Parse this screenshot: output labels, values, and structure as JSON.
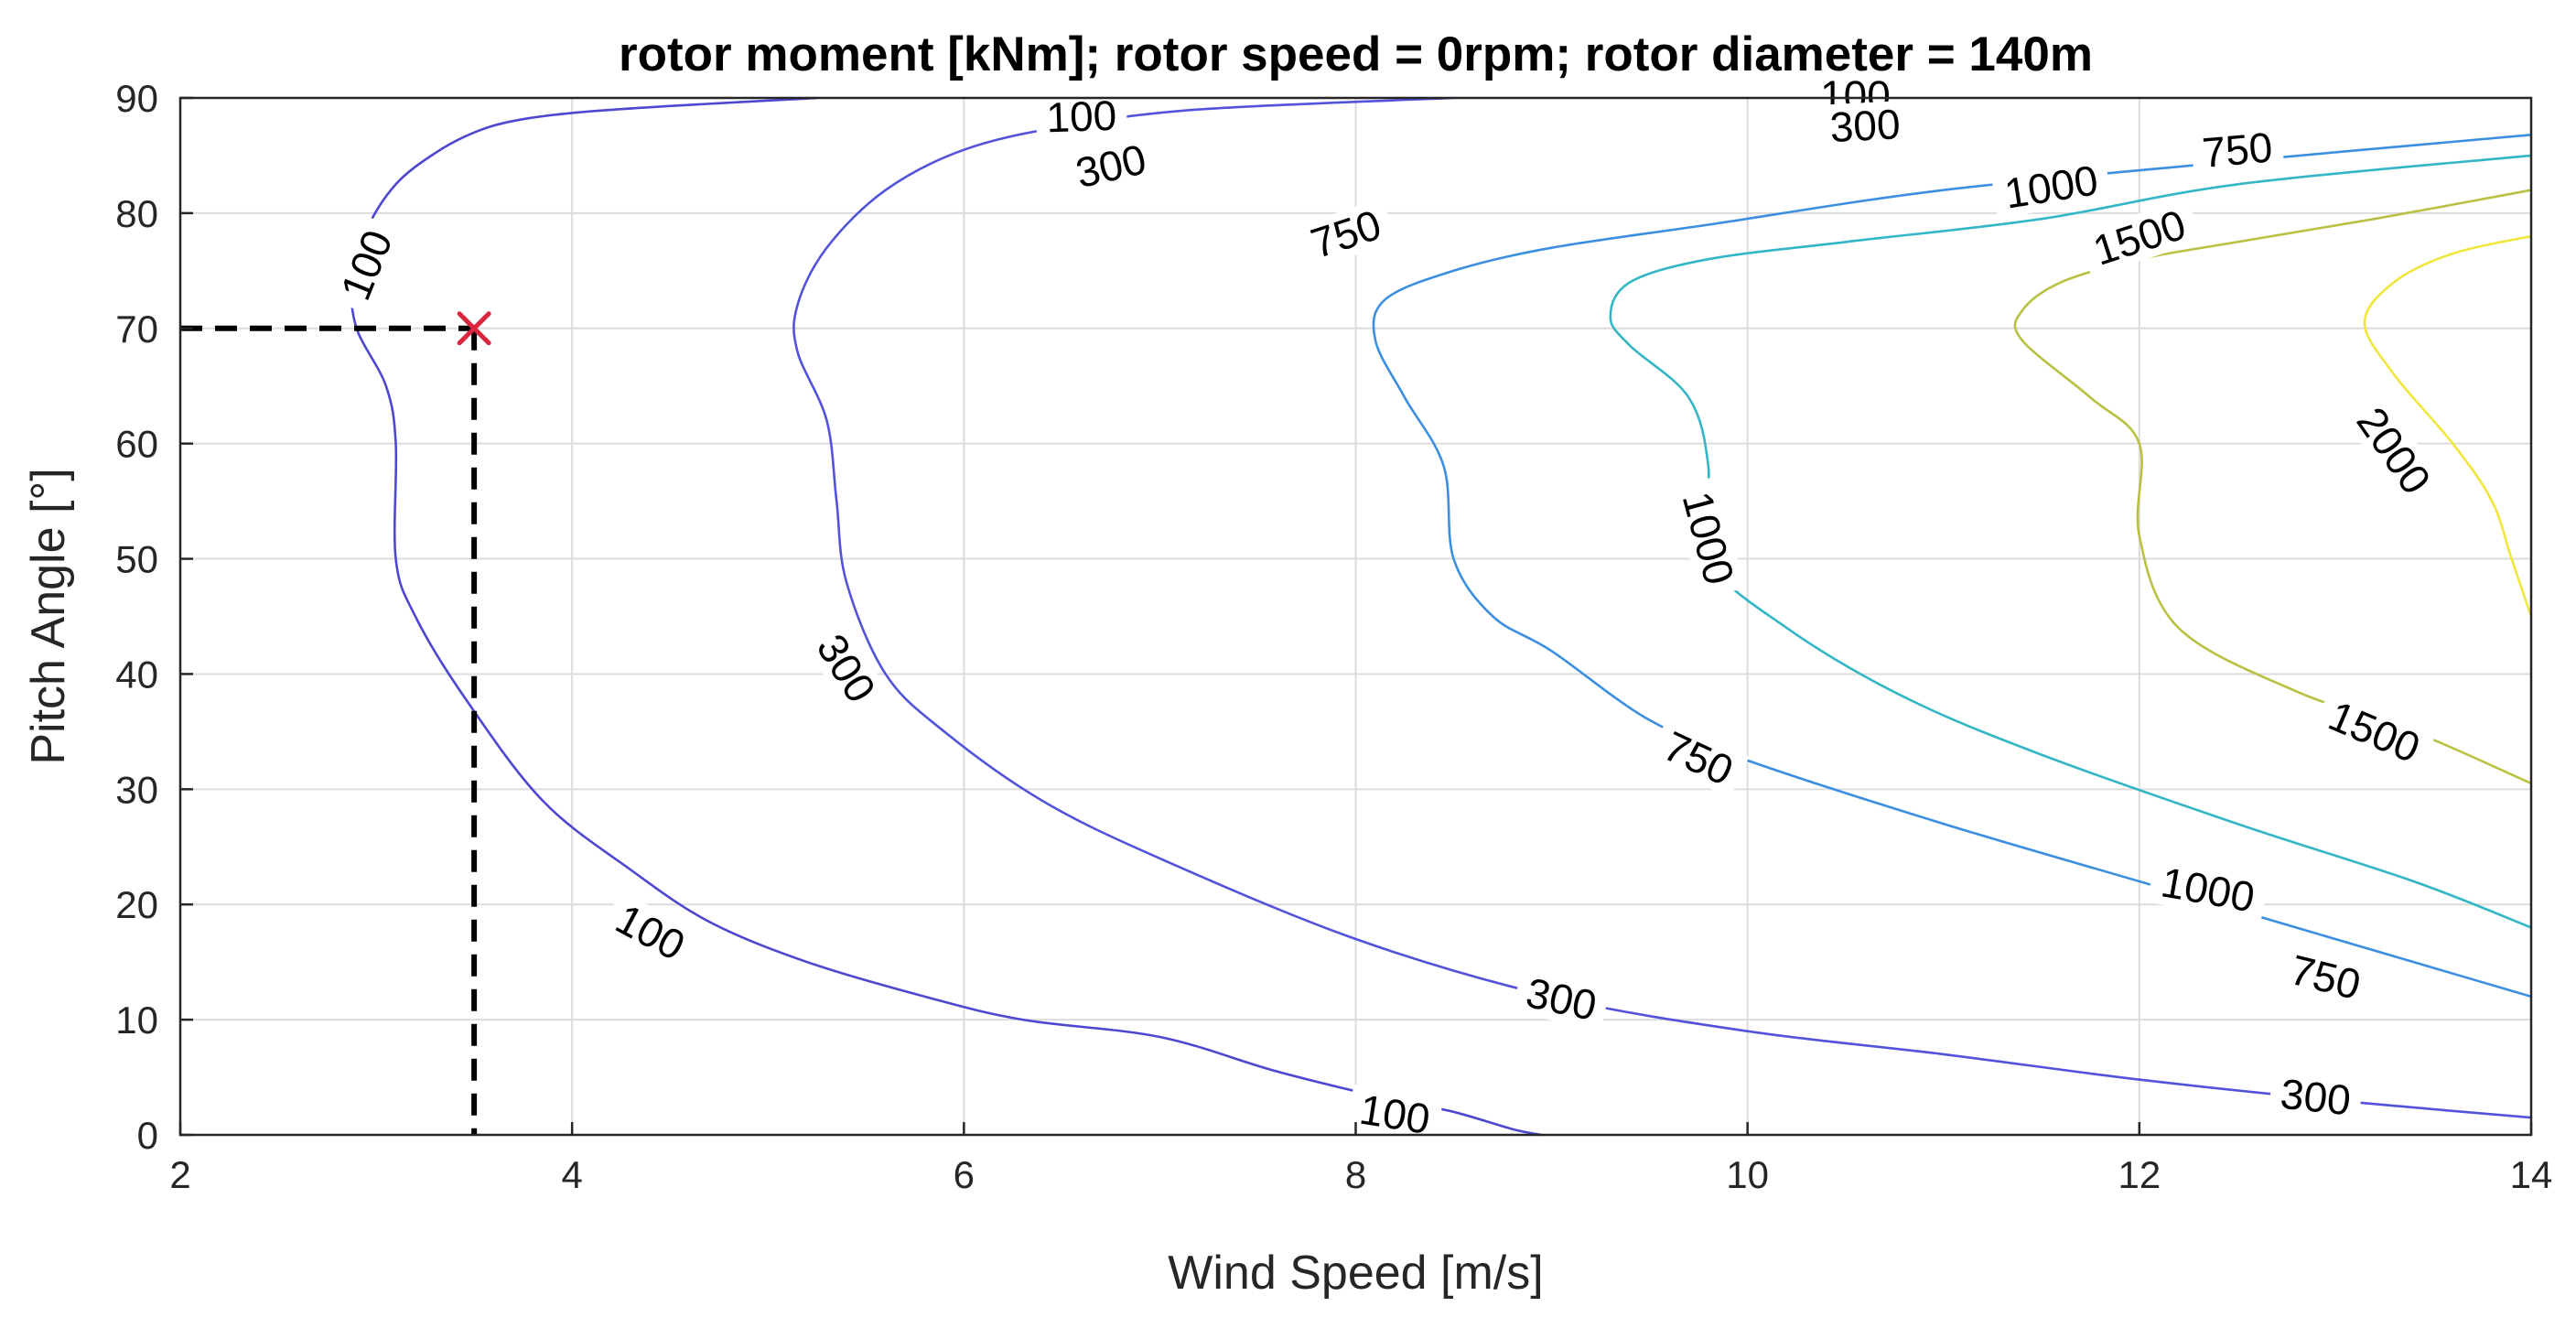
{
  "chart_data": {
    "type": "contour",
    "title": "rotor moment  [kNm]; rotor speed = 0rpm; rotor diameter = 140m",
    "xlabel": "Wind Speed [m/s]",
    "ylabel": "Pitch Angle [°]",
    "xlim": [
      2,
      14
    ],
    "ylim": [
      0,
      90
    ],
    "xticks": [
      2,
      4,
      6,
      8,
      10,
      12,
      14
    ],
    "yticks": [
      0,
      10,
      20,
      30,
      40,
      50,
      60,
      70,
      80,
      90
    ],
    "grid": true,
    "contours": [
      {
        "level": 100,
        "color": "#4e48d0",
        "points": [
          [
            5.25,
            90
          ],
          [
            4.5,
            89.3
          ],
          [
            4.0,
            88.7
          ],
          [
            3.7,
            88.0
          ],
          [
            3.5,
            87.0
          ],
          [
            3.3,
            85.2
          ],
          [
            3.1,
            82.5
          ],
          [
            2.95,
            78.5
          ],
          [
            2.88,
            74
          ],
          [
            2.9,
            70
          ],
          [
            3.05,
            65
          ],
          [
            3.1,
            60
          ],
          [
            3.1,
            50
          ],
          [
            3.2,
            45
          ],
          [
            3.45,
            38
          ],
          [
            3.85,
            29
          ],
          [
            4.3,
            23
          ],
          [
            4.7,
            18.5
          ],
          [
            5.2,
            15
          ],
          [
            5.8,
            12
          ],
          [
            6.3,
            10
          ],
          [
            7.0,
            8.5
          ],
          [
            7.6,
            5.5
          ],
          [
            8.2,
            3
          ],
          [
            8.5,
            2
          ],
          [
            8.8,
            0.5
          ],
          [
            8.95,
            0
          ]
        ],
        "labels": [
          {
            "x": 2.95,
            "y": 75.5,
            "angle": -68
          },
          {
            "x": 6.6,
            "y": 88.4,
            "angle": -2
          },
          {
            "x": 4.4,
            "y": 17.6,
            "angle": 28
          },
          {
            "x": 8.2,
            "y": 1.8,
            "angle": 9
          },
          {
            "x": 10.55,
            "y": 90.2,
            "angle": 0
          }
        ]
      },
      {
        "level": 300,
        "color": "#5252db",
        "points": [
          [
            8.5,
            90
          ],
          [
            7.2,
            89
          ],
          [
            6.5,
            87.5
          ],
          [
            6.0,
            85.5
          ],
          [
            5.6,
            82
          ],
          [
            5.3,
            77
          ],
          [
            5.15,
            72
          ],
          [
            5.15,
            68
          ],
          [
            5.3,
            62
          ],
          [
            5.35,
            55
          ],
          [
            5.4,
            48
          ],
          [
            5.6,
            40
          ],
          [
            5.9,
            35
          ],
          [
            6.4,
            29
          ],
          [
            7.0,
            24
          ],
          [
            8.0,
            17
          ],
          [
            9.0,
            12
          ],
          [
            10.0,
            9
          ],
          [
            11.0,
            7
          ],
          [
            12.0,
            4.8
          ],
          [
            13.0,
            3
          ],
          [
            14.0,
            1.5
          ]
        ],
        "labels": [
          {
            "x": 6.75,
            "y": 84.1,
            "angle": -13
          },
          {
            "x": 5.4,
            "y": 40.5,
            "angle": 58
          },
          {
            "x": 9.05,
            "y": 11.8,
            "angle": 12
          },
          {
            "x": 10.6,
            "y": 87.6,
            "angle": -3
          },
          {
            "x": 12.9,
            "y": 3.3,
            "angle": 6
          }
        ]
      },
      {
        "level": 750,
        "color": "#3c8fe0",
        "points": [
          [
            14.0,
            86.8
          ],
          [
            12.5,
            84.5
          ],
          [
            11.0,
            82
          ],
          [
            9.8,
            79
          ],
          [
            9.0,
            77
          ],
          [
            8.5,
            75
          ],
          [
            8.15,
            72.5
          ],
          [
            8.1,
            69
          ],
          [
            8.25,
            64
          ],
          [
            8.45,
            58
          ],
          [
            8.5,
            50
          ],
          [
            8.7,
            45
          ],
          [
            9.0,
            42
          ],
          [
            9.5,
            36
          ],
          [
            10.0,
            32.5
          ],
          [
            11.0,
            27
          ],
          [
            12.0,
            22
          ],
          [
            13.0,
            17
          ],
          [
            14.0,
            12
          ]
        ],
        "labels": [
          {
            "x": 7.95,
            "y": 78.2,
            "angle": -18
          },
          {
            "x": 9.75,
            "y": 32.7,
            "angle": 25
          },
          {
            "x": 12.5,
            "y": 85.5,
            "angle": -5
          },
          {
            "x": 12.95,
            "y": 13.7,
            "angle": 14
          }
        ]
      },
      {
        "level": 1000,
        "color": "#33b6c6",
        "points": [
          [
            14.0,
            85
          ],
          [
            12.5,
            82.5
          ],
          [
            11.5,
            79.5
          ],
          [
            10.5,
            77.5
          ],
          [
            9.8,
            76
          ],
          [
            9.4,
            74
          ],
          [
            9.3,
            71
          ],
          [
            9.4,
            68.5
          ],
          [
            9.7,
            64
          ],
          [
            9.8,
            58
          ],
          [
            9.8,
            50
          ],
          [
            10.2,
            44
          ],
          [
            10.8,
            38
          ],
          [
            11.5,
            33
          ],
          [
            12.5,
            27
          ],
          [
            13.4,
            22
          ],
          [
            14.0,
            18
          ]
        ],
        "labels": [
          {
            "x": 9.8,
            "y": 51.8,
            "angle": 75
          },
          {
            "x": 12.35,
            "y": 21.3,
            "angle": 10
          },
          {
            "x": 11.55,
            "y": 82.3,
            "angle": -9
          }
        ]
      },
      {
        "level": 1500,
        "color": "#b9c143",
        "points": [
          [
            14.0,
            82
          ],
          [
            13.2,
            79.5
          ],
          [
            12.5,
            77.5
          ],
          [
            12.0,
            76
          ],
          [
            11.6,
            74
          ],
          [
            11.4,
            71.5
          ],
          [
            11.4,
            69
          ],
          [
            11.75,
            64
          ],
          [
            12.0,
            60
          ],
          [
            12.0,
            52
          ],
          [
            12.2,
            44
          ],
          [
            12.8,
            38.5
          ],
          [
            13.4,
            35
          ],
          [
            14.0,
            30.5
          ]
        ],
        "labels": [
          {
            "x": 12.0,
            "y": 77.9,
            "angle": -18
          },
          {
            "x": 13.2,
            "y": 35,
            "angle": 23
          }
        ]
      },
      {
        "level": 2000,
        "color": "#f0e63c",
        "points": [
          [
            14.0,
            78
          ],
          [
            13.6,
            76.5
          ],
          [
            13.3,
            74
          ],
          [
            13.15,
            70.5
          ],
          [
            13.3,
            66
          ],
          [
            13.6,
            60
          ],
          [
            13.8,
            55
          ],
          [
            13.9,
            50
          ],
          [
            14.0,
            45
          ]
        ],
        "labels": [
          {
            "x": 13.3,
            "y": 59.4,
            "angle": 55
          }
        ]
      }
    ],
    "annotations": [
      {
        "type": "marker",
        "symbol": "x",
        "color": "#d7263d",
        "x": 3.5,
        "y": 70
      },
      {
        "type": "guide",
        "style": "dashed",
        "from": [
          2,
          70
        ],
        "to": [
          3.5,
          70
        ]
      },
      {
        "type": "guide",
        "style": "dashed",
        "from": [
          3.5,
          70
        ],
        "to": [
          3.5,
          0
        ]
      }
    ]
  }
}
